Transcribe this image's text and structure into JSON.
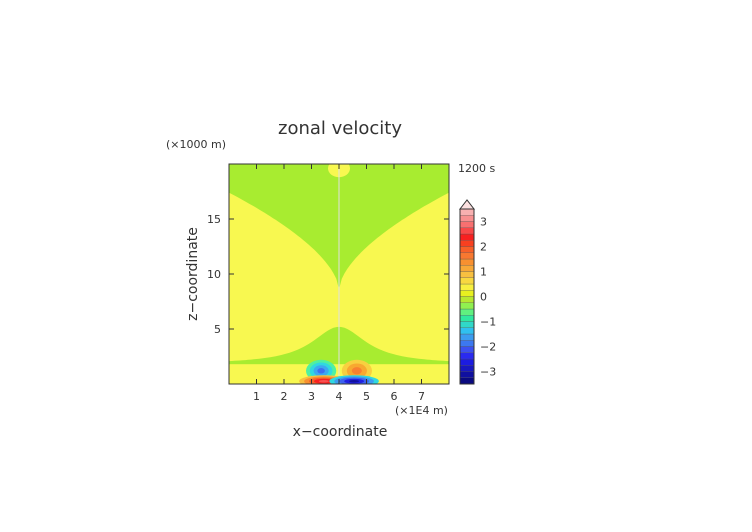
{
  "chart_data": {
    "type": "heatmap",
    "title": "zonal velocity",
    "xlabel": "x−coordinate",
    "ylabel": "z−coordinate",
    "x_unit": "(×1E4 m)",
    "y_unit": "(×1000 m)",
    "time_label": "1200 s",
    "xlim": [
      0,
      8
    ],
    "ylim": [
      0,
      20
    ],
    "xticks": [
      1,
      2,
      3,
      4,
      5,
      6,
      7
    ],
    "xtick_labels": [
      "1",
      "2",
      "3",
      "4",
      "5",
      "6",
      "7"
    ],
    "yticks": [
      5,
      10,
      15
    ],
    "ytick_labels": [
      "5",
      "10",
      "15"
    ],
    "colorbar": {
      "levels": [
        -3.5,
        -3.25,
        -3,
        -2.75,
        -2.5,
        -2.25,
        -2,
        -1.75,
        -1.5,
        -1.25,
        -1,
        -0.75,
        -0.5,
        -0.25,
        0,
        0.25,
        0.5,
        0.75,
        1,
        1.25,
        1.5,
        1.75,
        2,
        2.25,
        2.5,
        2.75,
        3,
        3.25,
        3.5
      ],
      "colors": [
        "#0a0a80",
        "#1010a0",
        "#1818c0",
        "#1c1ce0",
        "#2a2af0",
        "#3c50f0",
        "#3c78f0",
        "#3c9cf0",
        "#30c0f0",
        "#30d8c8",
        "#30e8a0",
        "#60f080",
        "#90f050",
        "#b8e830",
        "#e8f020",
        "#f8f040",
        "#f8d840",
        "#f8c040",
        "#f8a838",
        "#f89030",
        "#f87830",
        "#f86028",
        "#f84020",
        "#f82020",
        "#f84848",
        "#f87070",
        "#f89090",
        "#f8b0b0"
      ],
      "tick_values": [
        3,
        2,
        1,
        0,
        -1,
        -2,
        -3
      ],
      "tick_labels": [
        "3",
        "2",
        "1",
        "0",
        "−1",
        "−2",
        "−3"
      ]
    },
    "field_regions": [
      {
        "level": 0,
        "desc": "background band",
        "value": 0.1
      },
      {
        "level": 1,
        "desc": "central upper region",
        "value": 0.3
      }
    ],
    "features": [
      {
        "x": 3.5,
        "z": 0.3,
        "value": 3.0
      },
      {
        "x": 4.5,
        "z": 0.3,
        "value": -3.0
      },
      {
        "x": 3.4,
        "z": 1.3,
        "value": -1.5
      },
      {
        "x": 4.6,
        "z": 1.3,
        "value": 1.2
      }
    ]
  }
}
